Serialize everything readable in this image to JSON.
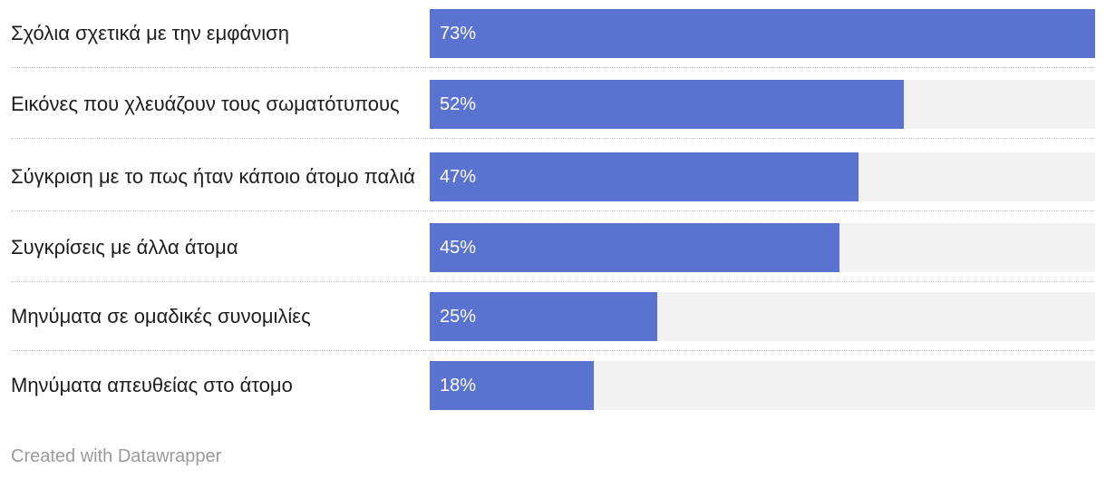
{
  "chart_data": {
    "type": "bar",
    "orientation": "horizontal",
    "categories": [
      "Σχόλια σχετικά με την εμφάνιση",
      "Εικόνες που χλευάζουν τους σωματότυπους",
      "Σύγκριση με το πως ήταν κάποιο άτομο παλιά",
      "Συγκρίσεις με άλλα άτομα",
      "Μηνύματα σε ομαδικές συνομιλίες",
      "Μηνύματα απευθείας στο άτομο"
    ],
    "values": [
      73,
      52,
      47,
      45,
      25,
      18
    ],
    "value_labels": [
      "73%",
      "52%",
      "47%",
      "45%",
      "25%",
      "18%"
    ],
    "xlim": [
      0,
      73
    ],
    "colors": {
      "bar": "#5b73d0",
      "track": "#f1f1f1"
    }
  },
  "footer": {
    "credit": "Created with Datawrapper"
  }
}
